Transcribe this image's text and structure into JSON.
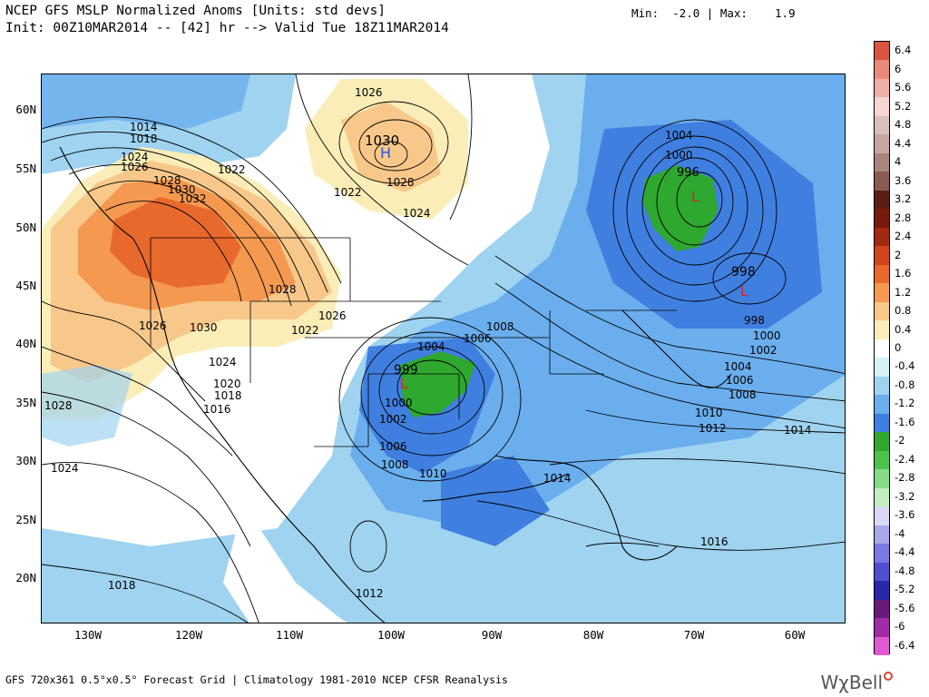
{
  "header": {
    "title_line1": "NCEP GFS MSLP Normalized Anoms [Units: std devs]",
    "title_line2": "Init: 00Z10MAR2014 -- [42] hr --> Valid Tue 18Z11MAR2014",
    "minmax": "Min:  -2.0 | Max:    1.9"
  },
  "axes": {
    "lat_labels": [
      "60N",
      "55N",
      "50N",
      "45N",
      "40N",
      "35N",
      "30N",
      "25N",
      "20N"
    ],
    "lon_labels": [
      "130W",
      "120W",
      "110W",
      "100W",
      "90W",
      "80W",
      "70W",
      "60W"
    ]
  },
  "colorbar": {
    "labels": [
      "6.4",
      "6",
      "5.6",
      "5.2",
      "4.8",
      "4.4",
      "4",
      "3.6",
      "3.2",
      "2.8",
      "2.4",
      "2",
      "1.6",
      "1.2",
      "0.8",
      "0.4",
      "0",
      "-0.4",
      "-0.8",
      "-1.2",
      "-1.6",
      "-2",
      "-2.4",
      "-2.8",
      "-3.2",
      "-3.6",
      "-4",
      "-4.4",
      "-4.8",
      "-5.2",
      "-5.6",
      "-6",
      "-6.4"
    ],
    "colors": [
      "#d9553f",
      "#e8897a",
      "#f0b0a8",
      "#f5d6d2",
      "#d8c0bb",
      "#c6a69f",
      "#a8857d",
      "#8a5b52",
      "#5a1e14",
      "#7a1a0a",
      "#a12a10",
      "#d0451a",
      "#e8692c",
      "#f4994f",
      "#f7c88a",
      "#fbedb8",
      "#ffffff",
      "#d6f0f7",
      "#9fd3f0",
      "#6aaeed",
      "#3f7fe0",
      "#2ea82e",
      "#4cc44c",
      "#86dc86",
      "#c2efc2",
      "#d9d9f5",
      "#a8a8ec",
      "#7a7ae2",
      "#5050cc",
      "#2828a8",
      "#6a1a7a",
      "#a02ca8",
      "#e05ad2"
    ]
  },
  "map": {
    "highs": [
      {
        "label": "H",
        "value": "1030"
      }
    ],
    "lows": [
      {
        "label": "L",
        "value": "999"
      },
      {
        "label": "L",
        "value": "996"
      },
      {
        "label": "L",
        "value": "998"
      }
    ],
    "contour_labels": [
      {
        "t": "1014"
      },
      {
        "t": "1018"
      },
      {
        "t": "1024"
      },
      {
        "t": "1026"
      },
      {
        "t": "1028"
      },
      {
        "t": "1030"
      },
      {
        "t": "1032"
      },
      {
        "t": "1022"
      },
      {
        "t": "1026"
      },
      {
        "t": "1022"
      },
      {
        "t": "1028"
      },
      {
        "t": "1024"
      },
      {
        "t": "1028"
      },
      {
        "t": "1026"
      },
      {
        "t": "1022"
      },
      {
        "t": "1026"
      },
      {
        "t": "1030"
      },
      {
        "t": "1024"
      },
      {
        "t": "1020"
      },
      {
        "t": "1018"
      },
      {
        "t": "1016"
      },
      {
        "t": "1028"
      },
      {
        "t": "1024"
      },
      {
        "t": "1018"
      },
      {
        "t": "1004"
      },
      {
        "t": "1006"
      },
      {
        "t": "1008"
      },
      {
        "t": "1000"
      },
      {
        "t": "1002"
      },
      {
        "t": "1006"
      },
      {
        "t": "1008"
      },
      {
        "t": "1010"
      },
      {
        "t": "1014"
      },
      {
        "t": "1012"
      },
      {
        "t": "1016"
      },
      {
        "t": "1004"
      },
      {
        "t": "1000"
      },
      {
        "t": "998"
      },
      {
        "t": "1000"
      },
      {
        "t": "1002"
      },
      {
        "t": "1004"
      },
      {
        "t": "1006"
      },
      {
        "t": "1008"
      },
      {
        "t": "1010"
      },
      {
        "t": "1012"
      },
      {
        "t": "1014"
      }
    ]
  },
  "footer": {
    "text": "GFS 720x361 0.5°x0.5° Forecast Grid | Climatology 1981-2010 NCEP CFSR Reanalysis",
    "brand": "WχBell"
  }
}
